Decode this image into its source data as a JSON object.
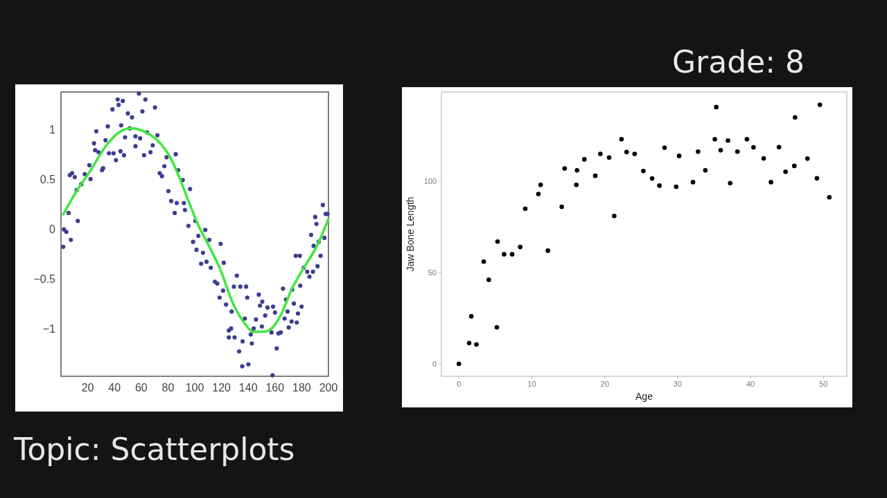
{
  "chart_data": [
    {
      "type": "scatter",
      "annotations": [
        "Topic: Scatterplots"
      ],
      "xlim": [
        0,
        200
      ],
      "ylim": [
        -1.48,
        1.375
      ],
      "xticks": [
        20,
        40,
        60,
        80,
        100,
        120,
        140,
        160,
        180,
        200
      ],
      "yticks": [
        -1,
        -0.5,
        0,
        0.5,
        1
      ],
      "grid": false,
      "marker": "circle",
      "series": [
        {
          "type": "scatter",
          "color": "#3c3f8f",
          "x": [
            1.7,
            2.2,
            4,
            5.7,
            7.4,
            6.6,
            8.3,
            10.3,
            12.6,
            11.7,
            15.2,
            17.8,
            21.2,
            22.1,
            24.7,
            25.5,
            26.4,
            28.1,
            30.7,
            31.5,
            33.3,
            35,
            35.9,
            38.5,
            39.3,
            41.1,
            42.4,
            43.1,
            44.5,
            45,
            46.2,
            47.1,
            47.9,
            50,
            51.4,
            53.1,
            55.7,
            55.7,
            58.3,
            59.2,
            60.9,
            62.1,
            63.1,
            64.3,
            66.9,
            68.6,
            70.3,
            72.1,
            73.8,
            75.5,
            77.3,
            79,
            80.3,
            82.4,
            85,
            85.8,
            86.6,
            87.6,
            91,
            91.9,
            92.7,
            96.5,
            95.3,
            98.8,
            100.5,
            101.3,
            102.7,
            104.8,
            106.2,
            107.9,
            108.8,
            110.9,
            112,
            115.1,
            116.9,
            119.4,
            118.6,
            121.2,
            121.7,
            123.4,
            125.5,
            127.2,
            127.6,
            125.5,
            129.8,
            129.3,
            131.5,
            133.2,
            134.1,
            135.8,
            135.5,
            138.4,
            140.1,
            139.3,
            137.5,
            141.9,
            142.7,
            144.1,
            145.8,
            147.9,
            148.8,
            150.5,
            150.2,
            152.7,
            154.4,
            157.4,
            158.6,
            158.2,
            160,
            161.3,
            162.6,
            164.3,
            166,
            167.2,
            168.3,
            169.4,
            170.3,
            172.4,
            172.9,
            174.1,
            175.5,
            177.2,
            176.3,
            178.6,
            178.9,
            179.9,
            181.5,
            184.1,
            185.8,
            187,
            188.4,
            188.9,
            190.1,
            191,
            191.8,
            192.7,
            194.1,
            195.8,
            197,
            197.9,
            199.3
          ],
          "values": [
            -0.18,
            -0.005,
            -0.03,
            0.16,
            -0.11,
            0.54,
            0.56,
            0.52,
            0.08,
            0.39,
            0.45,
            0.55,
            0.64,
            0.5,
            0.86,
            0.79,
            0.98,
            0.77,
            0.59,
            0.61,
            0.89,
            1.03,
            0.76,
            1.2,
            0.76,
            0.69,
            1.3,
            1.245,
            0.78,
            1.04,
            1.285,
            0.74,
            0.92,
            1.16,
            1.01,
            1.12,
            0.93,
            0.83,
            1.36,
            0.91,
            1.18,
            0.74,
            1.3,
            0.97,
            0.77,
            0.84,
            1.22,
            0.94,
            0.56,
            0.53,
            0.63,
            0.72,
            0.38,
            0.28,
            0.16,
            0.75,
            0.26,
            0.59,
            0.49,
            0.26,
            0.19,
            0.4,
            0.03,
            -0.13,
            0.08,
            -0.21,
            -0.07,
            -0.35,
            -0.24,
            -0.01,
            -0.33,
            -0.11,
            -0.39,
            -0.53,
            -0.55,
            -0.15,
            -0.69,
            -0.62,
            -0.34,
            -0.76,
            -1.02,
            -1,
            -0.83,
            -1.09,
            -1.09,
            -0.58,
            -0.47,
            -1.23,
            -0.58,
            -1.13,
            -1.38,
            -0.58,
            -1.36,
            -0.69,
            -0.9,
            -1.06,
            -1.15,
            -1,
            -0.91,
            -0.66,
            -0.77,
            -0.73,
            -0.98,
            -0.87,
            -0.79,
            -1.04,
            -0.78,
            -1.47,
            -0.84,
            -1.2,
            -1.05,
            -1.04,
            -0.6,
            -0.9,
            -0.71,
            -0.83,
            -0.99,
            -0.93,
            -0.61,
            -0.75,
            -0.27,
            -0.85,
            -0.94,
            -0.27,
            -0.57,
            -0.78,
            -0.39,
            -0.43,
            -0.48,
            -0.06,
            -0.43,
            -0.17,
            0.12,
            0.05,
            -0.375,
            -0.13,
            -0.27,
            0.24,
            -0.09,
            0.15,
            0.15
          ]
        },
        {
          "type": "line",
          "color": "#3ee83e",
          "marker": "none",
          "x": [
            1.7,
            11.7,
            22,
            34,
            44.5,
            53,
            63.4,
            72,
            82.4,
            89.3,
            94.5,
            101.4,
            111.7,
            118.6,
            129,
            135.8,
            144.5,
            153,
            158.2,
            165,
            172,
            180.7,
            191,
            200
          ],
          "values": [
            0.146,
            0.38,
            0.585,
            0.84,
            0.98,
            1.01,
            0.97,
            0.89,
            0.7,
            0.49,
            0.31,
            0.076,
            -0.2,
            -0.39,
            -0.76,
            -0.92,
            -1.035,
            -1.03,
            -0.99,
            -0.85,
            -0.62,
            -0.41,
            -0.18,
            0.1
          ]
        }
      ]
    },
    {
      "type": "scatter",
      "annotations": [
        "Grade: 8"
      ],
      "xlabel": "Age",
      "ylabel": "Jaw Bone Length",
      "xlim": [
        -2.4,
        53.2
      ],
      "ylim": [
        -6.8,
        148.9
      ],
      "xticks": [
        0,
        10,
        20,
        30,
        40,
        50
      ],
      "yticks": [
        0,
        50,
        100
      ],
      "grid": false,
      "marker": "circle",
      "series": [
        {
          "type": "scatter",
          "color": "#000000",
          "x": [
            0,
            1.4,
            1.7,
            2.4,
            3.4,
            4.1,
            5.2,
            5.3,
            6.2,
            7.3,
            8.4,
            9.1,
            10.9,
            11.2,
            12.2,
            14.1,
            14.5,
            16.1,
            16.2,
            17.2,
            18.7,
            19.4,
            20.6,
            21.3,
            22.3,
            23,
            24.1,
            25.3,
            26.5,
            27.5,
            28.2,
            29.8,
            30.2,
            32.1,
            32.8,
            33.8,
            35.1,
            35.3,
            35.9,
            36.9,
            37.2,
            38.2,
            39.5,
            40.4,
            41.8,
            42.8,
            43.9,
            44.8,
            46,
            46.1,
            47.8,
            49.1,
            49.5,
            50.8
          ],
          "values": [
            0,
            11.4,
            26,
            10.6,
            56,
            46,
            20,
            67,
            60,
            60,
            64,
            85,
            93,
            98,
            62,
            86,
            107,
            98,
            106,
            112,
            103,
            115,
            113,
            81,
            123,
            116,
            115,
            105.6,
            101.5,
            97.6,
            118.4,
            97,
            113.9,
            99.5,
            116.2,
            106,
            123,
            140.6,
            117,
            122.3,
            99,
            116.2,
            123,
            118.6,
            112.5,
            99.5,
            118.7,
            105.2,
            108.4,
            135,
            112.4,
            101.6,
            141.9,
            91.2
          ]
        }
      ]
    }
  ]
}
